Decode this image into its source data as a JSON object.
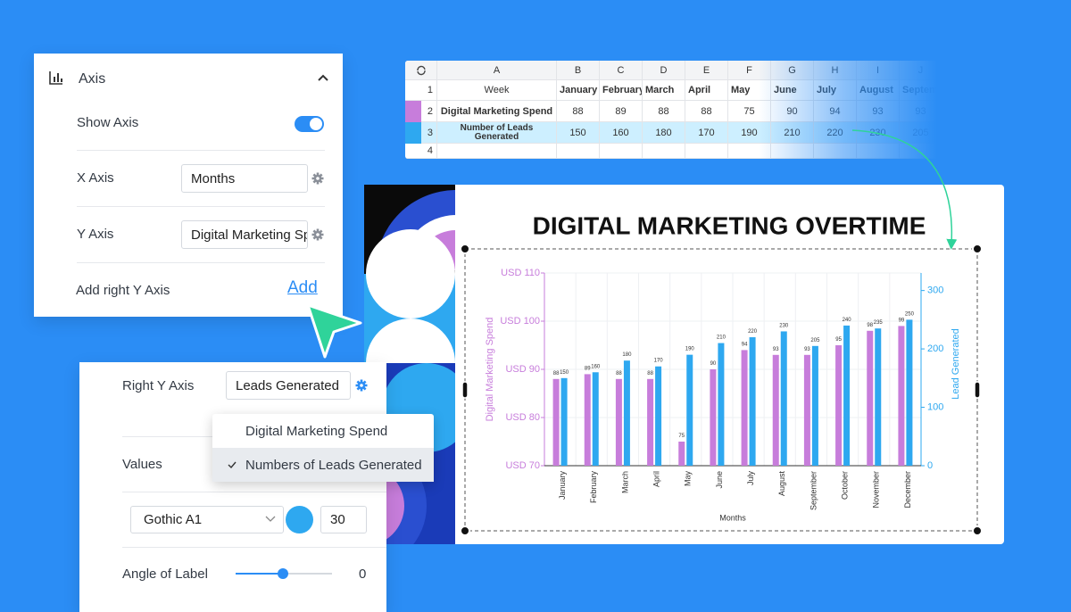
{
  "axis_panel": {
    "title": "Axis",
    "show_axis_label": "Show Axis",
    "x_axis_label": "X Axis",
    "x_axis_value": "Months",
    "y_axis_label": "Y Axis",
    "y_axis_value": "Digital Marketing Spend",
    "add_right_label": "Add right Y Axis",
    "add_link": "Add"
  },
  "spreadsheet": {
    "columns": [
      "A",
      "B",
      "C",
      "D",
      "E",
      "F",
      "G",
      "H",
      "I",
      "J"
    ],
    "row_numbers": [
      1,
      2,
      3,
      4
    ],
    "rows": [
      [
        "Week",
        "January",
        "February",
        "March",
        "April",
        "May",
        "June",
        "July",
        "August",
        "September"
      ],
      [
        "Digital Marketing Spend",
        88,
        89,
        88,
        88,
        75,
        90,
        94,
        93,
        93
      ],
      [
        "Number of Leads Generated",
        150,
        160,
        180,
        170,
        190,
        210,
        220,
        230,
        205
      ]
    ]
  },
  "chart_data": {
    "type": "bar",
    "title": "DIGITAL MARKETING OVERTIME",
    "x_label": "Months",
    "y_label": "Digital Marketing Spend",
    "y2_label": "Lead Generated",
    "categories": [
      "January",
      "February",
      "March",
      "April",
      "May",
      "June",
      "July",
      "August",
      "September",
      "October",
      "November",
      "December"
    ],
    "series": [
      {
        "name": "Digital Marketing Spend",
        "color": "#c77ddb",
        "values": [
          88,
          89,
          88,
          88,
          75,
          90,
          94,
          93,
          93,
          95,
          98,
          99
        ]
      },
      {
        "name": "Numbers of Leads Generated",
        "color": "#2ea8f0",
        "axis": "y2",
        "values": [
          150,
          160,
          180,
          170,
          190,
          210,
          220,
          230,
          205,
          240,
          235,
          250
        ]
      }
    ],
    "ylim": [
      70,
      110
    ],
    "yticks": [
      {
        "value": 70,
        "label": "USD 70"
      },
      {
        "value": 80,
        "label": "USD 80"
      },
      {
        "value": 90,
        "label": "USD 90"
      },
      {
        "value": 100,
        "label": "USD 100"
      },
      {
        "value": 110,
        "label": "USD 110"
      }
    ],
    "y2lim": [
      0,
      330
    ],
    "y2ticks": [
      0,
      100,
      200,
      300
    ],
    "grid": true
  },
  "right_panel": {
    "right_y_label": "Right Y Axis",
    "right_y_value": "Leads Generated",
    "values_label": "Values",
    "font": "Gothic A1",
    "font_size": 30,
    "angle_label": "Angle of Label",
    "angle_value": 0
  }
}
